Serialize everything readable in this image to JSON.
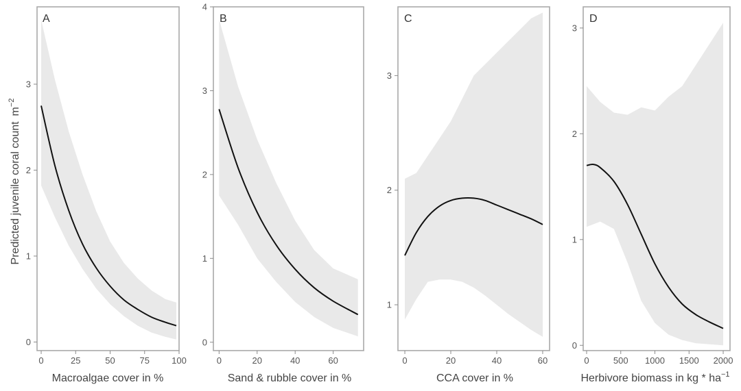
{
  "figure": {
    "ylabel_main": "Predicted juvenile coral count",
    "ylabel_unit": "m",
    "ylabel_unit_exp": "−2"
  },
  "chart_data": [
    {
      "type": "line",
      "panel": "A",
      "xlabel": "Macroalgae cover in %",
      "xlim": [
        -3,
        100
      ],
      "ylim": [
        -0.1,
        3.9
      ],
      "xticks": [
        0,
        25,
        50,
        75,
        100
      ],
      "yticks": [
        0,
        1,
        2,
        3
      ],
      "series": [
        {
          "kind": "ci",
          "x": [
            0,
            10,
            20,
            30,
            40,
            50,
            60,
            70,
            80,
            90,
            98
          ],
          "lower": [
            1.82,
            1.45,
            1.12,
            0.85,
            0.62,
            0.44,
            0.3,
            0.19,
            0.11,
            0.06,
            0.03
          ],
          "upper": [
            3.75,
            3.05,
            2.45,
            1.95,
            1.52,
            1.17,
            0.92,
            0.74,
            0.6,
            0.5,
            0.46
          ]
        },
        {
          "kind": "fit",
          "x": [
            0,
            10,
            20,
            30,
            40,
            50,
            60,
            70,
            80,
            90,
            98
          ],
          "y": [
            2.75,
            2.05,
            1.53,
            1.14,
            0.86,
            0.65,
            0.49,
            0.38,
            0.29,
            0.23,
            0.19
          ]
        }
      ],
      "grid": false
    },
    {
      "type": "line",
      "panel": "B",
      "xlabel": "Sand & rubble cover in %",
      "xlim": [
        -3,
        76
      ],
      "ylim": [
        -0.1,
        4.0
      ],
      "xticks": [
        0,
        20,
        40,
        60
      ],
      "yticks": [
        0,
        1,
        2,
        3,
        4
      ],
      "series": [
        {
          "kind": "ci",
          "x": [
            0,
            10,
            20,
            30,
            40,
            50,
            60,
            73
          ],
          "lower": [
            1.75,
            1.4,
            1.0,
            0.72,
            0.48,
            0.3,
            0.17,
            0.07
          ],
          "upper": [
            3.85,
            3.05,
            2.42,
            1.9,
            1.45,
            1.1,
            0.88,
            0.75
          ]
        },
        {
          "kind": "fit",
          "x": [
            0,
            10,
            20,
            30,
            40,
            50,
            60,
            73
          ],
          "y": [
            2.78,
            2.08,
            1.55,
            1.16,
            0.87,
            0.65,
            0.49,
            0.33
          ]
        }
      ],
      "grid": false
    },
    {
      "type": "line",
      "panel": "C",
      "xlabel": "CCA cover in %",
      "xlim": [
        -3,
        63
      ],
      "ylim": [
        0.6,
        3.6
      ],
      "xticks": [
        0,
        20,
        40,
        60
      ],
      "yticks": [
        1,
        2,
        3
      ],
      "series": [
        {
          "kind": "ci",
          "x": [
            0,
            5,
            10,
            15,
            20,
            25,
            30,
            35,
            40,
            45,
            50,
            55,
            60
          ],
          "lower": [
            0.87,
            1.05,
            1.2,
            1.22,
            1.22,
            1.2,
            1.15,
            1.08,
            1.0,
            0.92,
            0.85,
            0.78,
            0.72
          ],
          "upper": [
            2.1,
            2.15,
            2.3,
            2.45,
            2.6,
            2.8,
            3.0,
            3.1,
            3.2,
            3.3,
            3.4,
            3.5,
            3.55
          ]
        },
        {
          "kind": "fit",
          "x": [
            0,
            5,
            10,
            15,
            20,
            25,
            30,
            35,
            40,
            45,
            50,
            55,
            60
          ],
          "y": [
            1.43,
            1.63,
            1.77,
            1.86,
            1.91,
            1.93,
            1.93,
            1.91,
            1.87,
            1.83,
            1.79,
            1.75,
            1.7
          ]
        }
      ],
      "grid": false
    },
    {
      "type": "line",
      "panel": "D",
      "xlabel": "Herbivore biomass in kg * ha",
      "xlabel_exp": "−1",
      "xlim": [
        -50,
        2100
      ],
      "ylim": [
        -0.05,
        3.2
      ],
      "xticks": [
        0,
        500,
        1000,
        1500,
        2000
      ],
      "yticks": [
        0,
        1,
        2,
        3
      ],
      "series": [
        {
          "kind": "ci",
          "x": [
            0,
            200,
            400,
            600,
            800,
            1000,
            1200,
            1400,
            1600,
            1800,
            2000
          ],
          "lower": [
            1.12,
            1.17,
            1.1,
            0.78,
            0.42,
            0.21,
            0.1,
            0.05,
            0.02,
            0.01,
            0.0
          ],
          "upper": [
            2.45,
            2.3,
            2.2,
            2.18,
            2.25,
            2.22,
            2.35,
            2.45,
            2.65,
            2.85,
            3.05
          ]
        },
        {
          "kind": "fit",
          "x": [
            0,
            100,
            200,
            400,
            600,
            800,
            1000,
            1200,
            1400,
            1600,
            1800,
            2000
          ],
          "y": [
            1.7,
            1.71,
            1.68,
            1.55,
            1.33,
            1.05,
            0.77,
            0.55,
            0.39,
            0.29,
            0.22,
            0.16
          ]
        }
      ],
      "grid": false
    }
  ]
}
